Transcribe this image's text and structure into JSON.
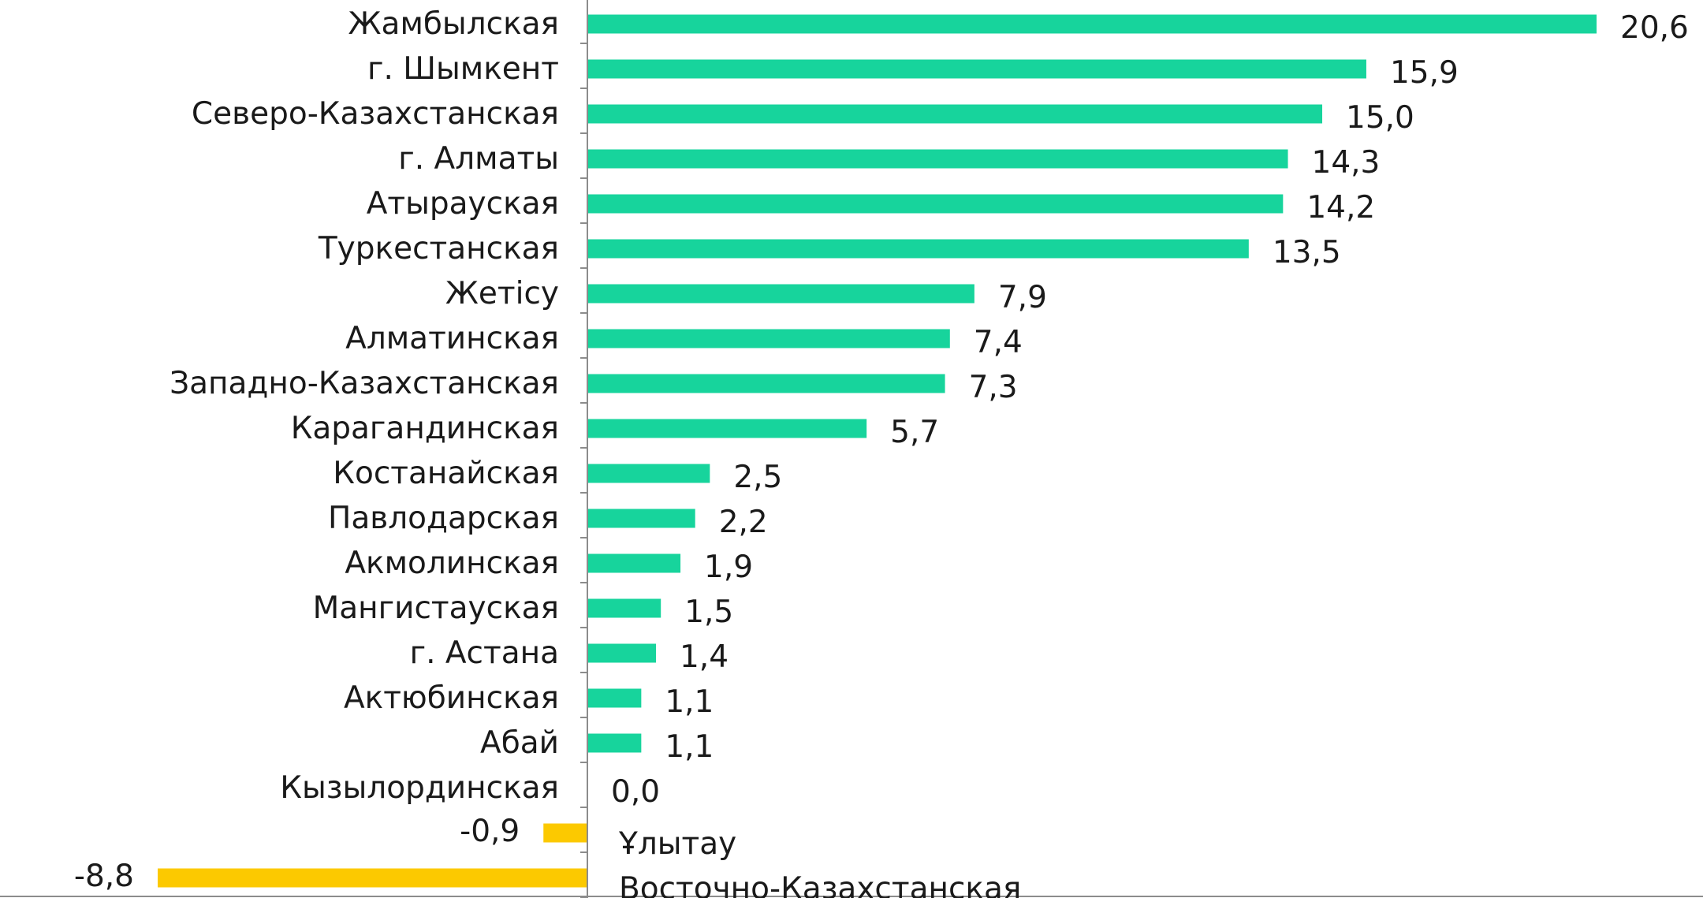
{
  "chart_data": {
    "type": "bar",
    "orientation": "horizontal",
    "categories": [
      "Жамбылская",
      "г. Шымкент",
      "Северо-Казахстанская",
      "г. Алматы",
      "Атырауская",
      "Туркестанская",
      "Жетісу",
      "Алматинская",
      "Западно-Казахстанская",
      "Карагандинская",
      "Костанайская",
      "Павлодарская",
      "Акмолинская",
      "Мангистауская",
      "г. Астана",
      "Актюбинская",
      "Абай",
      "Кызылординская",
      "Ұлытау",
      "Восточно-Казахстанская"
    ],
    "values": [
      20.6,
      15.9,
      15.0,
      14.3,
      14.2,
      13.5,
      7.9,
      7.4,
      7.3,
      5.7,
      2.5,
      2.2,
      1.9,
      1.5,
      1.4,
      1.1,
      1.1,
      0.0,
      -0.9,
      -8.8
    ],
    "value_labels": [
      "20,6",
      "15,9",
      "15,0",
      "14,3",
      "14,2",
      "13,5",
      "7,9",
      "7,4",
      "7,3",
      "5,7",
      "2,5",
      "2,2",
      "1,9",
      "1,5",
      "1,4",
      "1,1",
      "1,1",
      "0,0",
      "-0,9",
      "-8,8"
    ],
    "xlim": [
      -8.8,
      20.6
    ],
    "title": "",
    "xlabel": "",
    "ylabel": "",
    "grid": false,
    "legend": "none",
    "colors": {
      "positive": "#17d49c",
      "negative": "#fcc900",
      "axis": "#8c8c8c"
    }
  }
}
